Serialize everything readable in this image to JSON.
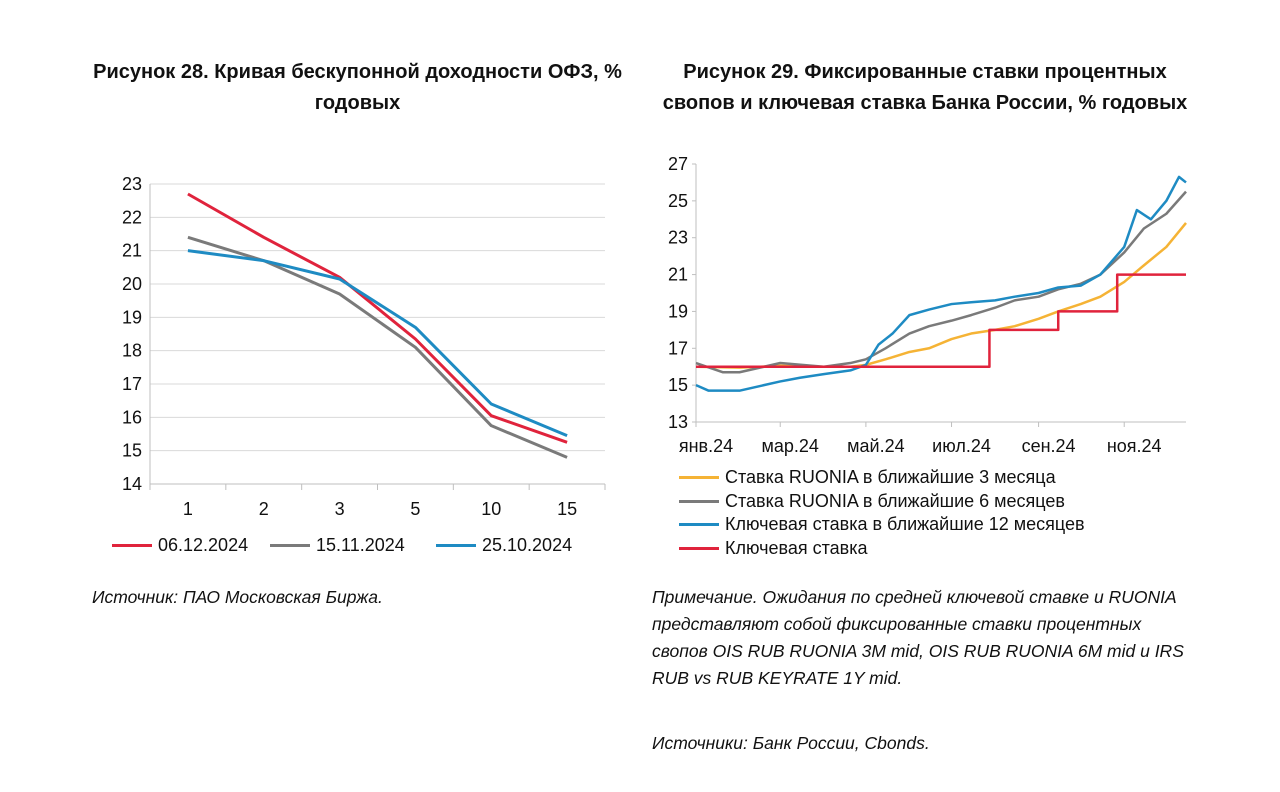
{
  "colors": {
    "red": "#e0233c",
    "gray": "#7a7a7a",
    "blue": "#1e8bc3",
    "yellow": "#f5b335",
    "grid": "#d9d9d9",
    "axis": "#bfbfbf"
  },
  "fig28": {
    "title": "Рисунок 28. Кривая бескупонной доходности ОФЗ, % годовых",
    "source": "Источник: ПАО Московская Биржа.",
    "chart_data": {
      "type": "line",
      "categories": [
        "1",
        "2",
        "3",
        "5",
        "10",
        "15"
      ],
      "ylim": [
        14,
        23
      ],
      "yticks": [
        "14",
        "15",
        "16",
        "17",
        "18",
        "19",
        "20",
        "21",
        "22",
        "23"
      ],
      "grid": "horizontal",
      "legend_position": "bottom",
      "series": [
        {
          "name": "06.12.2024",
          "color": "red",
          "values": [
            22.7,
            21.4,
            20.2,
            18.35,
            16.05,
            15.25
          ]
        },
        {
          "name": "15.11.2024",
          "color": "gray",
          "values": [
            21.4,
            20.7,
            19.7,
            18.1,
            15.75,
            14.8
          ]
        },
        {
          "name": "25.10.2024",
          "color": "blue",
          "values": [
            21.0,
            20.7,
            20.15,
            18.7,
            16.4,
            15.45
          ]
        }
      ]
    }
  },
  "fig29": {
    "title": "Рисунок 29. Фиксированные ставки процентных свопов и ключевая ставка Банка России, % годовых",
    "note": "Примечание. Ожидания по средней ключевой ставке и RUONIA представляют собой фиксированные ставки процентных свопов OIS RUB RUONIA 3M mid, OIS RUB RUONIA 6M mid и IRS RUB vs RUB KEYRATE 1Y mid.",
    "source": "Источники: Банк России, Cbonds.",
    "chart_data": {
      "type": "line",
      "xlim": [
        "2024-01-01",
        "2024-12-15"
      ],
      "xticks": [
        "янв.24",
        "мар.24",
        "май.24",
        "июл.24",
        "сен.24",
        "ноя.24"
      ],
      "ylim": [
        13,
        27
      ],
      "yticks": [
        "13",
        "15",
        "17",
        "19",
        "21",
        "23",
        "25",
        "27"
      ],
      "grid": "none",
      "legend_position": "bottom",
      "series": [
        {
          "name": "Ставка RUONIA в ближайшие 3 месяца",
          "color": "yellow",
          "x": [
            "2024-01-01",
            "2024-02-01",
            "2024-03-01",
            "2024-04-01",
            "2024-04-20",
            "2024-05-01",
            "2024-05-15",
            "2024-06-01",
            "2024-06-15",
            "2024-07-01",
            "2024-07-15",
            "2024-08-01",
            "2024-08-15",
            "2024-09-01",
            "2024-09-15",
            "2024-10-01",
            "2024-10-15",
            "2024-11-01",
            "2024-11-15",
            "2024-12-01",
            "2024-12-15"
          ],
          "y": [
            16.0,
            15.95,
            16.05,
            16.0,
            16.0,
            16.1,
            16.4,
            16.8,
            17.0,
            17.5,
            17.8,
            18.0,
            18.2,
            18.6,
            19.0,
            19.4,
            19.8,
            20.6,
            21.5,
            22.5,
            23.8
          ]
        },
        {
          "name": "Ставка RUONIA в ближайшие 6 месяцев",
          "color": "gray",
          "x": [
            "2024-01-01",
            "2024-01-20",
            "2024-02-01",
            "2024-03-01",
            "2024-04-01",
            "2024-04-20",
            "2024-05-01",
            "2024-05-15",
            "2024-06-01",
            "2024-06-15",
            "2024-07-01",
            "2024-07-15",
            "2024-08-01",
            "2024-08-15",
            "2024-09-01",
            "2024-09-15",
            "2024-10-01",
            "2024-10-15",
            "2024-11-01",
            "2024-11-15",
            "2024-12-01",
            "2024-12-15"
          ],
          "y": [
            16.2,
            15.7,
            15.7,
            16.2,
            16.0,
            16.2,
            16.4,
            17.0,
            17.8,
            18.2,
            18.5,
            18.8,
            19.2,
            19.6,
            19.8,
            20.2,
            20.5,
            21.0,
            22.2,
            23.5,
            24.3,
            25.5
          ]
        },
        {
          "name": "Ключевая ставка в ближайшие 12 месяцев",
          "color": "blue",
          "x": [
            "2024-01-01",
            "2024-01-10",
            "2024-02-01",
            "2024-03-01",
            "2024-03-15",
            "2024-04-01",
            "2024-04-20",
            "2024-05-01",
            "2024-05-10",
            "2024-05-20",
            "2024-06-01",
            "2024-06-15",
            "2024-07-01",
            "2024-07-15",
            "2024-08-01",
            "2024-08-15",
            "2024-09-01",
            "2024-09-15",
            "2024-10-01",
            "2024-10-15",
            "2024-11-01",
            "2024-11-10",
            "2024-11-20",
            "2024-12-01",
            "2024-12-10",
            "2024-12-15"
          ],
          "y": [
            15.0,
            14.7,
            14.7,
            15.2,
            15.4,
            15.6,
            15.8,
            16.1,
            17.2,
            17.8,
            18.8,
            19.1,
            19.4,
            19.5,
            19.6,
            19.8,
            20.0,
            20.3,
            20.4,
            21.0,
            22.5,
            24.5,
            24.0,
            25.0,
            26.3,
            26.0
          ]
        },
        {
          "name": "Ключевая ставка",
          "color": "red",
          "x": [
            "2024-01-01",
            "2024-07-28",
            "2024-07-28",
            "2024-09-15",
            "2024-09-15",
            "2024-10-27",
            "2024-10-27",
            "2024-12-15"
          ],
          "y": [
            16,
            16,
            18,
            18,
            19,
            19,
            21,
            21
          ]
        }
      ]
    }
  }
}
